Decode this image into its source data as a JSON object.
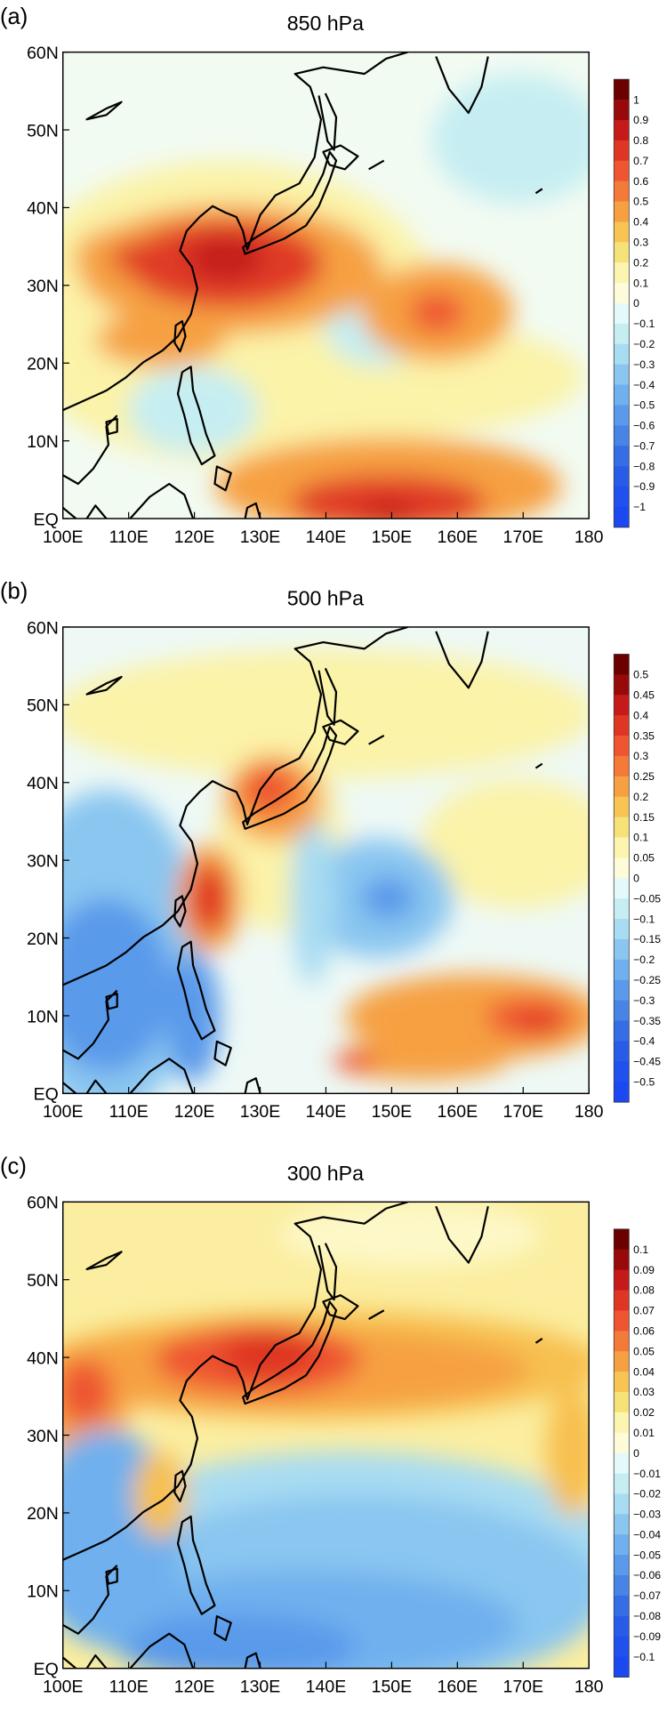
{
  "axes": {
    "lat_ticks": [
      "60N",
      "50N",
      "40N",
      "30N",
      "20N",
      "10N",
      "EQ"
    ],
    "lon_ticks": [
      "100E",
      "110E",
      "120E",
      "130E",
      "140E",
      "150E",
      "160E",
      "170E",
      "180"
    ]
  },
  "panels": [
    {
      "label": "(a)",
      "title": "850 hPa",
      "colorbar": [
        "1",
        "0.9",
        "0.8",
        "0.7",
        "0.6",
        "0.5",
        "0.4",
        "0.3",
        "0.2",
        "0.1",
        "0",
        "−0.1",
        "−0.2",
        "−0.3",
        "−0.4",
        "−0.5",
        "−0.6",
        "−0.7",
        "−0.8",
        "−0.9",
        "−1"
      ]
    },
    {
      "label": "(b)",
      "title": "500 hPa",
      "colorbar": [
        "0.5",
        "0.45",
        "0.4",
        "0.35",
        "0.3",
        "0.25",
        "0.2",
        "0.15",
        "0.1",
        "0.05",
        "0",
        "−0.05",
        "−0.1",
        "−0.15",
        "−0.2",
        "−0.25",
        "−0.3",
        "−0.35",
        "−0.4",
        "−0.45",
        "−0.5"
      ]
    },
    {
      "label": "(c)",
      "title": "300 hPa",
      "colorbar": [
        "0.1",
        "0.09",
        "0.08",
        "0.07",
        "0.06",
        "0.05",
        "0.04",
        "0.03",
        "0.02",
        "0.01",
        "0",
        "−0.01",
        "−0.02",
        "−0.03",
        "−0.04",
        "−0.05",
        "−0.06",
        "−0.07",
        "−0.08",
        "−0.09",
        "−0.1"
      ]
    }
  ]
}
